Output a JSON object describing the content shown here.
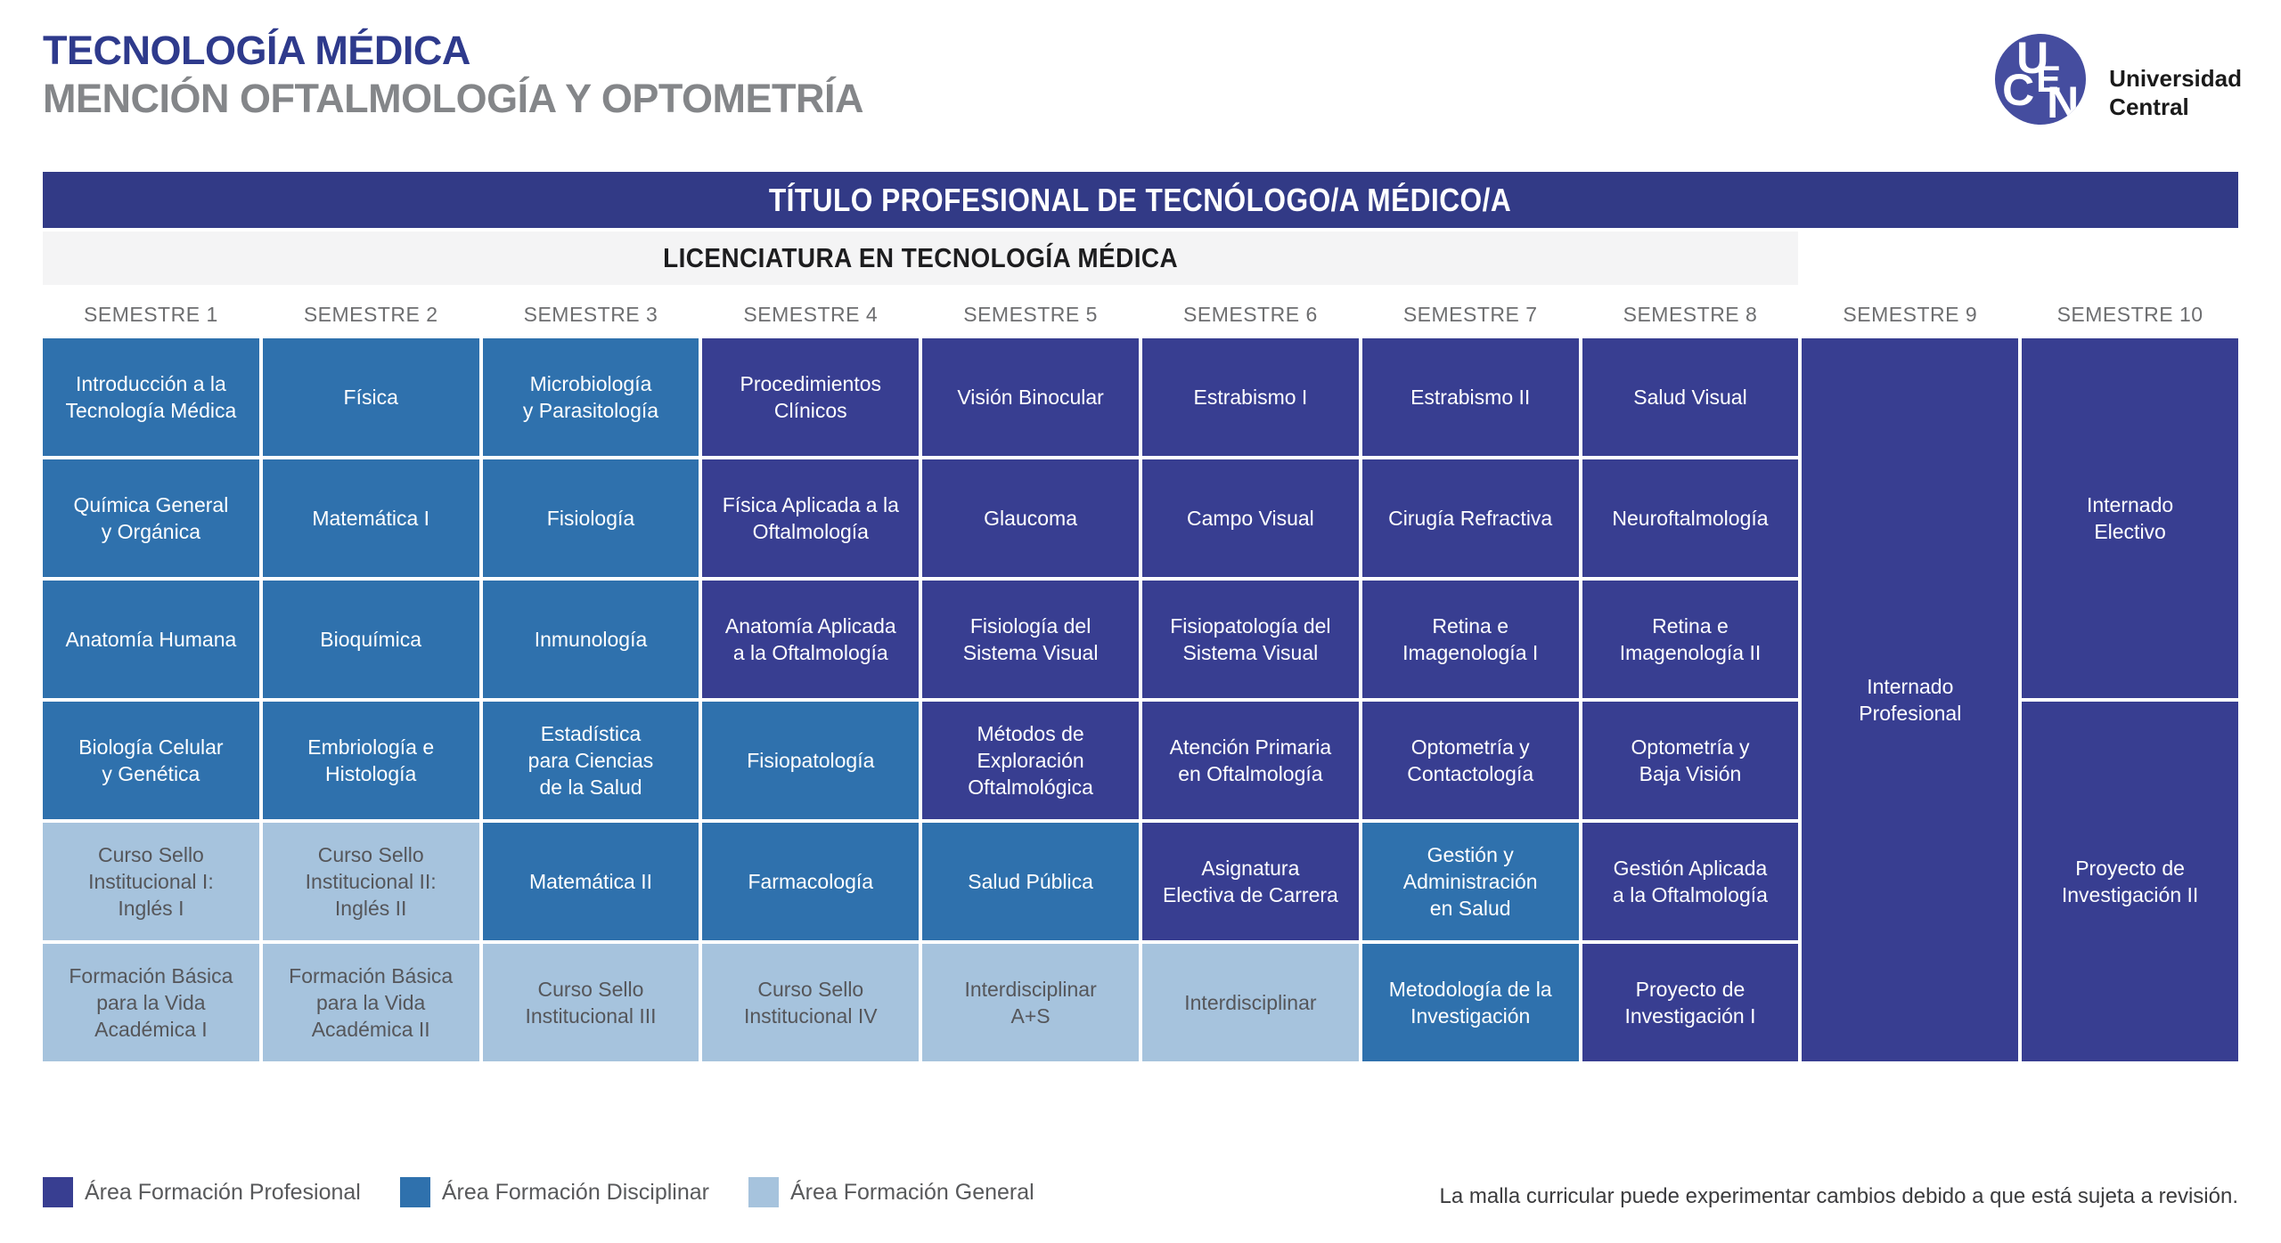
{
  "header": {
    "title": "TECNOLOGÍA MÉDICA",
    "subtitle": "MENCIÓN OFTALMOLOGÍA Y OPTOMETRÍA"
  },
  "logo": {
    "letters": [
      "U",
      "C",
      "E",
      "N"
    ],
    "institution_line1": "Universidad",
    "institution_line2": "Central"
  },
  "banners": {
    "professional_title": "TÍTULO PROFESIONAL DE TECNÓLOGO/A MÉDICO/A",
    "licenciatura": "LICENCIATURA EN TECNOLOGÍA MÉDICA"
  },
  "semesters": [
    "SEMESTRE 1",
    "SEMESTRE 2",
    "SEMESTRE 3",
    "SEMESTRE 4",
    "SEMESTRE 5",
    "SEMESTRE 6",
    "SEMESTRE 7",
    "SEMESTRE 8",
    "SEMESTRE 9",
    "SEMESTRE 10"
  ],
  "grid": {
    "cells": [
      {
        "col": 1,
        "row": 1,
        "area": "disciplinar",
        "title": "Introducción a la\nTecnología Médica"
      },
      {
        "col": 1,
        "row": 2,
        "area": "disciplinar",
        "title": "Química General\ny Orgánica"
      },
      {
        "col": 1,
        "row": 3,
        "area": "disciplinar",
        "title": "Anatomía Humana"
      },
      {
        "col": 1,
        "row": 4,
        "area": "disciplinar",
        "title": "Biología Celular\ny Genética"
      },
      {
        "col": 1,
        "row": 5,
        "area": "general",
        "title": "Curso Sello\nInstitucional I:\nInglés I"
      },
      {
        "col": 1,
        "row": 6,
        "area": "general",
        "title": "Formación Básica\npara la Vida\nAcadémica I"
      },
      {
        "col": 2,
        "row": 1,
        "area": "disciplinar",
        "title": "Física"
      },
      {
        "col": 2,
        "row": 2,
        "area": "disciplinar",
        "title": "Matemática I"
      },
      {
        "col": 2,
        "row": 3,
        "area": "disciplinar",
        "title": "Bioquímica"
      },
      {
        "col": 2,
        "row": 4,
        "area": "disciplinar",
        "title": "Embriología e\nHistología"
      },
      {
        "col": 2,
        "row": 5,
        "area": "general",
        "title": "Curso Sello\nInstitucional II:\nInglés II"
      },
      {
        "col": 2,
        "row": 6,
        "area": "general",
        "title": "Formación Básica\npara la Vida\nAcadémica II"
      },
      {
        "col": 3,
        "row": 1,
        "area": "disciplinar",
        "title": "Microbiología\ny Parasitología"
      },
      {
        "col": 3,
        "row": 2,
        "area": "disciplinar",
        "title": "Fisiología"
      },
      {
        "col": 3,
        "row": 3,
        "area": "disciplinar",
        "title": "Inmunología"
      },
      {
        "col": 3,
        "row": 4,
        "area": "disciplinar",
        "title": "Estadística\npara Ciencias\nde la Salud"
      },
      {
        "col": 3,
        "row": 5,
        "area": "disciplinar",
        "title": "Matemática II"
      },
      {
        "col": 3,
        "row": 6,
        "area": "general",
        "title": "Curso Sello\nInstitucional III"
      },
      {
        "col": 4,
        "row": 1,
        "area": "profesional",
        "title": "Procedimientos\nClínicos"
      },
      {
        "col": 4,
        "row": 2,
        "area": "profesional",
        "title": "Física Aplicada a la\nOftalmología"
      },
      {
        "col": 4,
        "row": 3,
        "area": "profesional",
        "title": "Anatomía Aplicada\na la Oftalmología"
      },
      {
        "col": 4,
        "row": 4,
        "area": "disciplinar",
        "title": "Fisiopatología"
      },
      {
        "col": 4,
        "row": 5,
        "area": "disciplinar",
        "title": "Farmacología"
      },
      {
        "col": 4,
        "row": 6,
        "area": "general",
        "title": "Curso Sello\nInstitucional IV"
      },
      {
        "col": 5,
        "row": 1,
        "area": "profesional",
        "title": "Visión Binocular"
      },
      {
        "col": 5,
        "row": 2,
        "area": "profesional",
        "title": "Glaucoma"
      },
      {
        "col": 5,
        "row": 3,
        "area": "profesional",
        "title": "Fisiología del\nSistema Visual"
      },
      {
        "col": 5,
        "row": 4,
        "area": "profesional",
        "title": "Métodos de\nExploración\nOftalmológica"
      },
      {
        "col": 5,
        "row": 5,
        "area": "disciplinar",
        "title": "Salud Pública"
      },
      {
        "col": 5,
        "row": 6,
        "area": "general",
        "title": "Interdisciplinar\nA+S"
      },
      {
        "col": 6,
        "row": 1,
        "area": "profesional",
        "title": "Estrabismo I"
      },
      {
        "col": 6,
        "row": 2,
        "area": "profesional",
        "title": "Campo Visual"
      },
      {
        "col": 6,
        "row": 3,
        "area": "profesional",
        "title": "Fisiopatología del\nSistema Visual"
      },
      {
        "col": 6,
        "row": 4,
        "area": "profesional",
        "title": "Atención Primaria\nen Oftalmología"
      },
      {
        "col": 6,
        "row": 5,
        "area": "profesional",
        "title": "Asignatura\nElectiva de Carrera"
      },
      {
        "col": 6,
        "row": 6,
        "area": "general",
        "title": "Interdisciplinar"
      },
      {
        "col": 7,
        "row": 1,
        "area": "profesional",
        "title": "Estrabismo II"
      },
      {
        "col": 7,
        "row": 2,
        "area": "profesional",
        "title": "Cirugía Refractiva"
      },
      {
        "col": 7,
        "row": 3,
        "area": "profesional",
        "title": "Retina e\nImagenología I"
      },
      {
        "col": 7,
        "row": 4,
        "area": "profesional",
        "title": "Optometría y\nContactología"
      },
      {
        "col": 7,
        "row": 5,
        "area": "disciplinar",
        "title": "Gestión y\nAdministración\nen Salud"
      },
      {
        "col": 7,
        "row": 6,
        "area": "disciplinar",
        "title": "Metodología de la\nInvestigación"
      },
      {
        "col": 8,
        "row": 1,
        "area": "profesional",
        "title": "Salud Visual"
      },
      {
        "col": 8,
        "row": 2,
        "area": "profesional",
        "title": "Neuroftalmología"
      },
      {
        "col": 8,
        "row": 3,
        "area": "profesional",
        "title": "Retina e\nImagenología II"
      },
      {
        "col": 8,
        "row": 4,
        "area": "profesional",
        "title": "Optometría y\nBaja Visión"
      },
      {
        "col": 8,
        "row": 5,
        "area": "profesional",
        "title": "Gestión Aplicada\na la Oftalmología"
      },
      {
        "col": 8,
        "row": 6,
        "area": "profesional",
        "title": "Proyecto de\nInvestigación I"
      },
      {
        "col": 9,
        "row": 1,
        "rowspan": 6,
        "area": "profesional",
        "title": "Internado\nProfesional"
      },
      {
        "col": 10,
        "row": 1,
        "rowspan": 3,
        "area": "profesional",
        "title": "Internado\nElectivo"
      },
      {
        "col": 10,
        "row": 4,
        "rowspan": 3,
        "area": "profesional",
        "title": "Proyecto de\nInvestigación II"
      }
    ]
  },
  "legend": {
    "items": [
      {
        "label": "Área Formación Profesional",
        "area": "profesional"
      },
      {
        "label": "Área Formación Disciplinar",
        "area": "disciplinar"
      },
      {
        "label": "Área Formación General",
        "area": "general"
      }
    ]
  },
  "footnote": "La malla curricular puede experimentar cambios debido a que está sujeta a revisión.",
  "colors": {
    "profesional": "#383e91",
    "disciplinar": "#2f71ad",
    "general": "#a6c3dd",
    "banner": "#323a86",
    "title_navy": "#2e3a8c",
    "title_gray": "#848689"
  }
}
